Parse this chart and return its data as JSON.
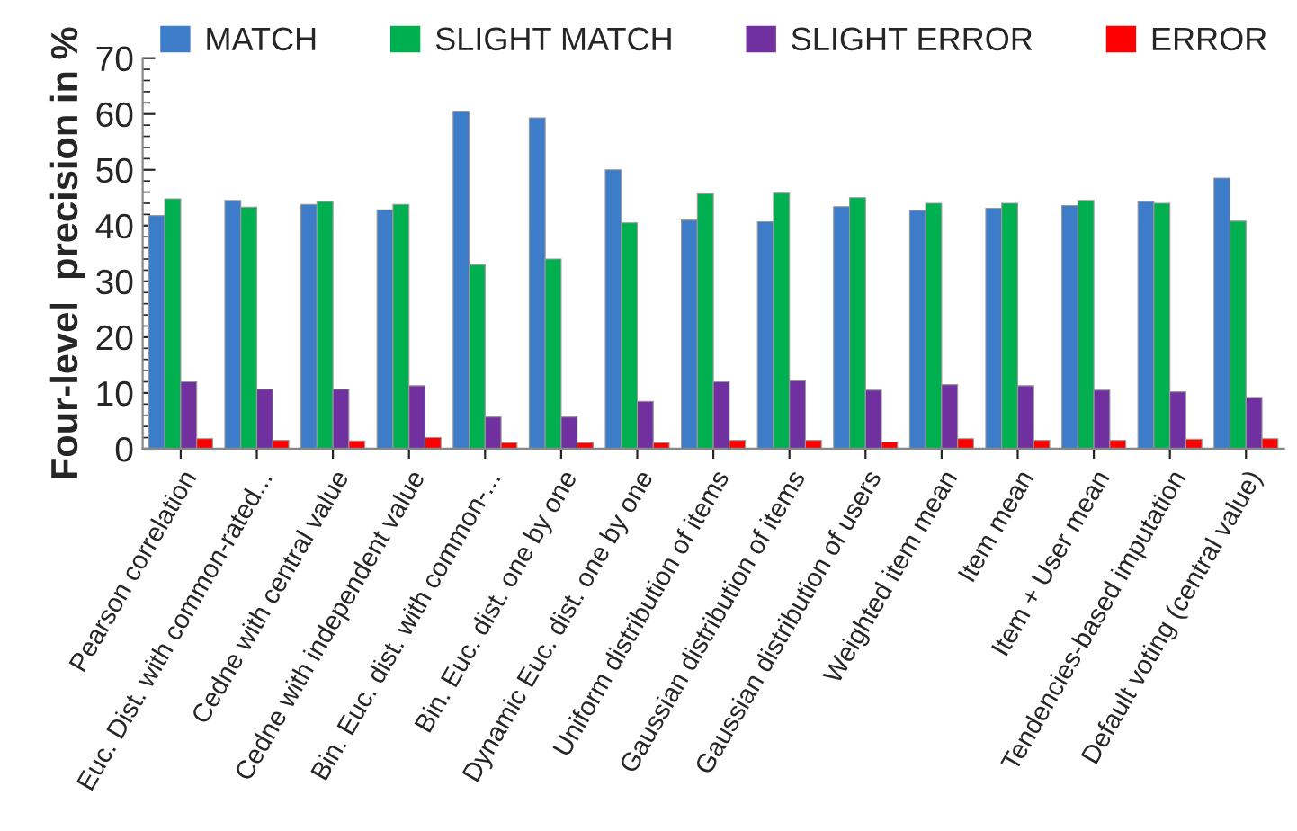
{
  "chart_data": {
    "type": "bar",
    "ylabel": "Four-level  precision in %",
    "categories": [
      "Pearson correlation",
      "Euc. Dist. with common-rated...",
      "Cedne with central value",
      "Cedne with independent value",
      "Bin. Euc. dist. with common-...",
      "Bin. Euc. dist. one by one",
      "Dynamic Euc. dist. one by one",
      "Uniform distribution of items",
      "Gaussian distribution of items",
      "Gaussian distribution of users",
      "Weighted item mean",
      "Item mean",
      "Item + User mean",
      "Tendencies-based imputation",
      "Default voting (central value)"
    ],
    "series": [
      {
        "name": "MATCH",
        "color": "#3d7cc9",
        "values": [
          41.8,
          44.5,
          43.8,
          42.8,
          60.5,
          59.3,
          50,
          41,
          40.7,
          43.4,
          42.7,
          43.1,
          43.6,
          44.3,
          48.5
        ]
      },
      {
        "name": "SLIGHT MATCH",
        "color": "#00b050",
        "values": [
          44.8,
          43.3,
          44.3,
          43.8,
          33,
          34,
          40.5,
          45.7,
          45.8,
          45,
          44,
          44,
          44.5,
          44,
          40.8
        ]
      },
      {
        "name": "SLIGHT ERROR",
        "color": "#7030a0",
        "values": [
          12,
          10.7,
          10.7,
          11.3,
          5.7,
          5.7,
          8.5,
          12,
          12.2,
          10.5,
          11.5,
          11.3,
          10.5,
          10.2,
          9.2
        ]
      },
      {
        "name": "ERROR",
        "color": "#ff0000",
        "values": [
          1.8,
          1.5,
          1.4,
          2,
          1.1,
          1.1,
          1.1,
          1.5,
          1.5,
          1.2,
          1.8,
          1.5,
          1.5,
          1.7,
          1.8
        ]
      }
    ],
    "ylim": [
      0,
      70
    ],
    "yticks": [
      0,
      10,
      20,
      30,
      40,
      50,
      60,
      70
    ],
    "grid": false,
    "legend": "top"
  }
}
